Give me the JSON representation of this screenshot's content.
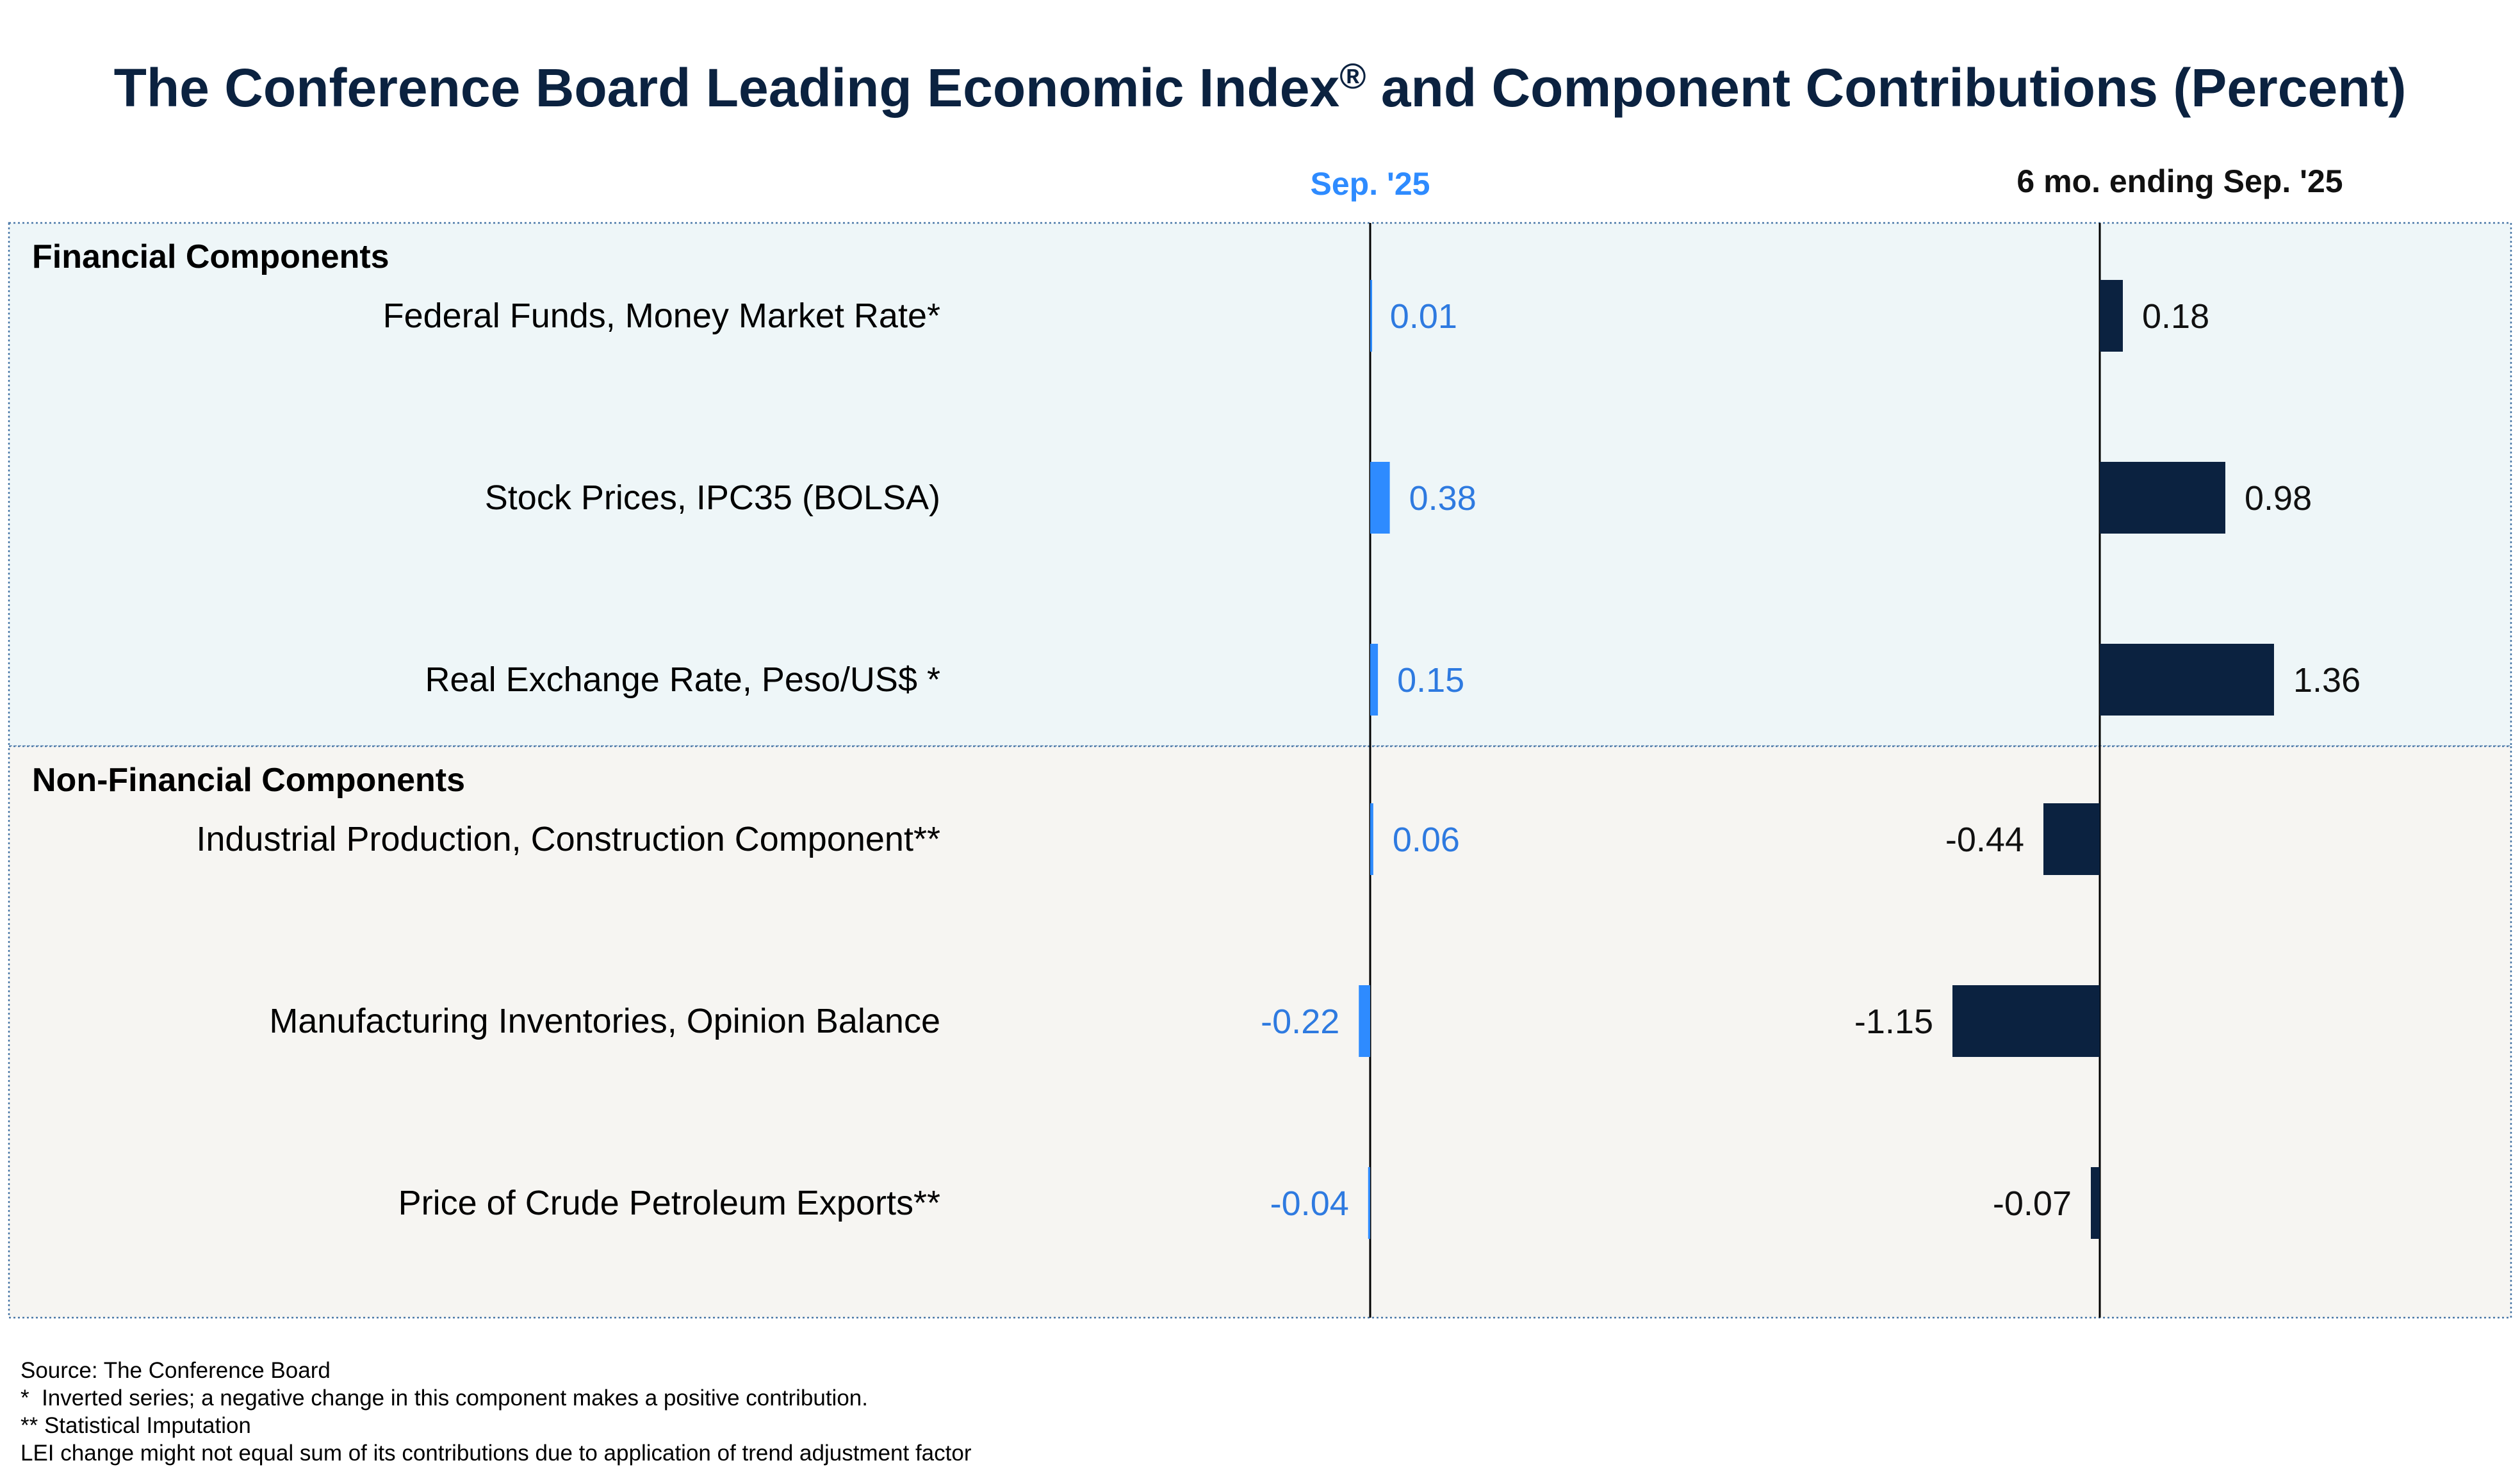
{
  "chart_data": {
    "type": "bar",
    "orientation": "horizontal",
    "title": "The Conference Board Leading Economic Index® and Component Contributions (Percent)",
    "title_parts": {
      "main": "The Conference Board Leading Economic Index",
      "sup": "®",
      "rest": " and Component Contributions (Percent)"
    },
    "panels": [
      {
        "name": "Sep. '25",
        "color": "#2e8bff",
        "label_color": "#2e7ae0",
        "xlim": [
          -1.2,
          1.2
        ]
      },
      {
        "name": "6 mo. ending Sep. '25",
        "color": "#0b2240",
        "label_color": "#111111",
        "xlim": [
          -2.8,
          2.8
        ]
      }
    ],
    "groups": [
      {
        "name": "Financial Components",
        "background": "#eef6f8",
        "items": [
          {
            "label": "Federal Funds, Money Market Rate*",
            "values": [
              0.01,
              0.18
            ],
            "value_labels": [
              "0.01",
              "0.18"
            ]
          },
          {
            "label": "Stock Prices, IPC35 (BOLSA)",
            "values": [
              0.38,
              0.98
            ],
            "value_labels": [
              "0.38",
              "0.98"
            ]
          },
          {
            "label": "Real Exchange Rate, Peso/US$ *",
            "values": [
              0.15,
              1.36
            ],
            "value_labels": [
              "0.15",
              "1.36"
            ]
          }
        ]
      },
      {
        "name": "Non-Financial Components",
        "background": "#f6f5f2",
        "items": [
          {
            "label": "Industrial Production, Construction Component**",
            "values": [
              0.06,
              -0.44
            ],
            "value_labels": [
              "0.06",
              "-0.44"
            ]
          },
          {
            "label": "Manufacturing Inventories, Opinion Balance",
            "values": [
              -0.22,
              -1.15
            ],
            "value_labels": [
              "-0.22",
              "-1.15"
            ]
          },
          {
            "label": "Price of Crude Petroleum Exports**",
            "values": [
              -0.04,
              -0.07
            ],
            "value_labels": [
              "-0.04",
              "-0.07"
            ]
          }
        ]
      }
    ]
  },
  "footnotes": {
    "source": "Source: The Conference Board",
    "note1": "*  Inverted series; a negative change in this component makes a positive contribution.",
    "note2": "** Statistical Imputation",
    "note3": "LEI change might not equal sum of its contributions due to application of trend adjustment factor"
  }
}
